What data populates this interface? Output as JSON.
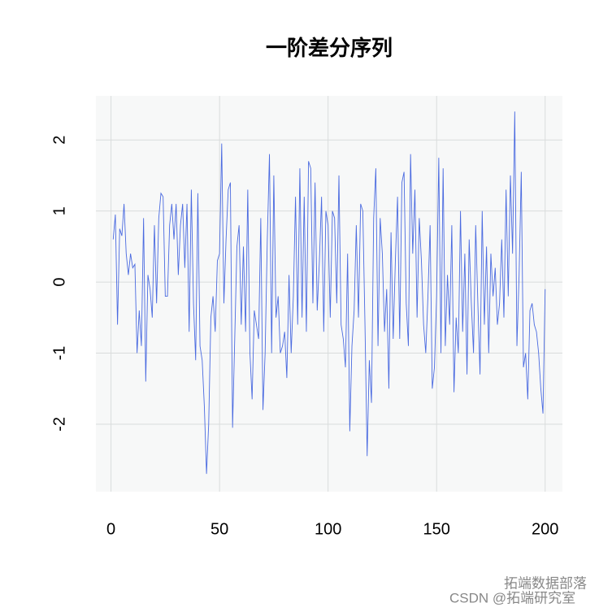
{
  "chart_data": {
    "type": "line",
    "title": "一阶差分序列",
    "x": [
      1,
      2,
      3,
      4,
      5,
      6,
      7,
      8,
      9,
      10,
      11,
      12,
      13,
      14,
      15,
      16,
      17,
      18,
      19,
      20,
      21,
      22,
      23,
      24,
      25,
      26,
      27,
      28,
      29,
      30,
      31,
      32,
      33,
      34,
      35,
      36,
      37,
      38,
      39,
      40,
      41,
      42,
      43,
      44,
      45,
      46,
      47,
      48,
      49,
      50,
      51,
      52,
      53,
      54,
      55,
      56,
      57,
      58,
      59,
      60,
      61,
      62,
      63,
      64,
      65,
      66,
      67,
      68,
      69,
      70,
      71,
      72,
      73,
      74,
      75,
      76,
      77,
      78,
      79,
      80,
      81,
      82,
      83,
      84,
      85,
      86,
      87,
      88,
      89,
      90,
      91,
      92,
      93,
      94,
      95,
      96,
      97,
      98,
      99,
      100,
      101,
      102,
      103,
      104,
      105,
      106,
      107,
      108,
      109,
      110,
      111,
      112,
      113,
      114,
      115,
      116,
      117,
      118,
      119,
      120,
      121,
      122,
      123,
      124,
      125,
      126,
      127,
      128,
      129,
      130,
      131,
      132,
      133,
      134,
      135,
      136,
      137,
      138,
      139,
      140,
      141,
      142,
      143,
      144,
      145,
      146,
      147,
      148,
      149,
      150,
      151,
      152,
      153,
      154,
      155,
      156,
      157,
      158,
      159,
      160,
      161,
      162,
      163,
      164,
      165,
      166,
      167,
      168,
      169,
      170,
      171,
      172,
      173,
      174,
      175,
      176,
      177,
      178,
      179,
      180,
      181,
      182,
      183,
      184,
      185,
      186,
      187,
      188,
      189,
      190,
      191,
      192,
      193,
      194,
      195,
      196,
      197,
      198,
      199,
      200
    ],
    "series": [
      {
        "color": "#4a6ae0",
        "values": [
          0.6,
          0.95,
          -0.6,
          0.75,
          0.65,
          1.1,
          0.4,
          0.1,
          0.4,
          0.2,
          0.25,
          -1.0,
          -0.4,
          -0.9,
          0.9,
          -1.4,
          0.1,
          -0.1,
          -0.5,
          0.8,
          -0.3,
          0.9,
          1.25,
          1.2,
          -0.2,
          -0.2,
          0.8,
          1.1,
          0.6,
          1.1,
          0.1,
          0.8,
          1.1,
          0.2,
          1.1,
          -0.7,
          1.3,
          -0.3,
          -1.1,
          1.25,
          -0.9,
          -1.1,
          -1.75,
          -2.7,
          -2.0,
          -0.5,
          -0.2,
          -0.7,
          0.3,
          0.4,
          1.95,
          -0.3,
          0.6,
          1.3,
          1.4,
          -2.05,
          -0.8,
          0.5,
          0.8,
          -0.6,
          0.5,
          -0.7,
          1.3,
          -1.0,
          -1.65,
          -0.4,
          -0.6,
          -0.8,
          0.9,
          -1.8,
          -1.0,
          0.6,
          1.8,
          -1.0,
          1.5,
          -0.5,
          -0.2,
          -1.0,
          -0.9,
          -0.7,
          -1.35,
          0.1,
          -1.0,
          -0.2,
          1.2,
          -0.6,
          1.6,
          -0.5,
          1.2,
          -0.7,
          1.7,
          1.6,
          -0.3,
          1.4,
          -0.4,
          0.3,
          1.2,
          -0.7,
          1.0,
          0.8,
          -0.5,
          1.0,
          0.9,
          -0.3,
          1.5,
          -0.6,
          -0.8,
          -1.2,
          0.4,
          -2.1,
          -0.9,
          -0.4,
          0.8,
          -0.5,
          1.1,
          1.0,
          -0.6,
          -2.45,
          -1.1,
          -1.7,
          0.9,
          1.6,
          -0.9,
          0.9,
          0.4,
          -0.7,
          -0.1,
          -1.5,
          0.7,
          -0.8,
          0.3,
          1.2,
          -0.8,
          1.4,
          1.55,
          -0.3,
          -0.9,
          1.8,
          0.4,
          1.3,
          -0.5,
          0.9,
          0.3,
          -0.6,
          -1.0,
          -0.2,
          0.8,
          -1.5,
          -1.2,
          -0.2,
          1.75,
          -1.0,
          1.6,
          -0.9,
          0.1,
          -0.6,
          0.8,
          -1.55,
          -0.5,
          -1.0,
          1.0,
          -0.7,
          0.4,
          -1.3,
          0.6,
          -0.3,
          -1.0,
          0.8,
          -0.3,
          -1.3,
          1.0,
          -0.6,
          0.5,
          -1.0,
          0.4,
          -0.2,
          0.2,
          -0.6,
          -0.3,
          0.6,
          -0.5,
          1.3,
          -0.2,
          1.5,
          0.4,
          2.4,
          -0.9,
          0.1,
          1.55,
          -1.2,
          -1.0,
          -1.65,
          -0.4,
          -0.3,
          -0.6,
          -0.7,
          -1.0,
          -1.5,
          -1.85,
          -0.1
        ]
      }
    ],
    "xlim": [
      -6.96,
      207.96
    ],
    "xticks": [
      0,
      50,
      100,
      150,
      200
    ],
    "ylim": [
      -2.95,
      2.62
    ],
    "yticks": [
      -2,
      -1,
      0,
      1,
      2
    ],
    "grid": true,
    "annotations": [
      "拓端数据部落",
      "CSDN @拓端研究室"
    ]
  }
}
